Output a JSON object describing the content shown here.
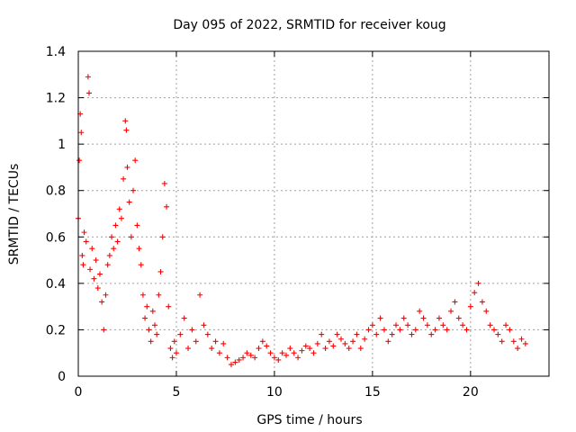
{
  "chart_data": {
    "type": "scatter",
    "title": "Day 095 of 2022, SRMTID for receiver koug",
    "xlabel": "GPS time / hours",
    "ylabel": "SRMTID / TECUs",
    "xlim": [
      0,
      24
    ],
    "ylim": [
      0,
      1.4
    ],
    "xticks": [
      0,
      5,
      10,
      15,
      20
    ],
    "xtick_labels": [
      "0",
      "5",
      "10",
      "15",
      "20"
    ],
    "yticks": [
      0,
      0.2,
      0.4,
      0.6,
      0.8,
      1.0,
      1.2,
      1.4
    ],
    "ytick_labels": [
      "0",
      "0.2",
      "0.4",
      "0.6",
      "0.8",
      "1",
      "1.2",
      "1.4"
    ],
    "grid": true,
    "marker": "+",
    "color": "#ff0000",
    "series": [
      {
        "name": "SRMTID",
        "x": [
          0.0,
          0.05,
          0.1,
          0.15,
          0.2,
          0.25,
          0.3,
          0.4,
          0.5,
          0.55,
          0.6,
          0.7,
          0.8,
          0.9,
          1.0,
          1.1,
          1.2,
          1.3,
          1.4,
          1.5,
          1.6,
          1.7,
          1.8,
          1.9,
          2.0,
          2.1,
          2.2,
          2.3,
          2.4,
          2.45,
          2.5,
          2.6,
          2.7,
          2.8,
          2.9,
          3.0,
          3.1,
          3.2,
          3.3,
          3.4,
          3.5,
          3.6,
          3.7,
          3.8,
          3.9,
          4.0,
          4.1,
          4.2,
          4.3,
          4.4,
          4.5,
          4.6,
          4.7,
          4.8,
          4.9,
          5.0,
          5.2,
          5.4,
          5.6,
          5.8,
          6.0,
          6.2,
          6.4,
          6.6,
          6.8,
          7.0,
          7.2,
          7.4,
          7.6,
          7.8,
          8.0,
          8.2,
          8.4,
          8.6,
          8.8,
          9.0,
          9.2,
          9.4,
          9.6,
          9.8,
          10.0,
          10.2,
          10.4,
          10.6,
          10.8,
          11.0,
          11.2,
          11.4,
          11.6,
          11.8,
          12.0,
          12.2,
          12.4,
          12.6,
          12.8,
          13.0,
          13.2,
          13.4,
          13.6,
          13.8,
          14.0,
          14.2,
          14.4,
          14.6,
          14.8,
          15.0,
          15.2,
          15.4,
          15.6,
          15.8,
          16.0,
          16.2,
          16.4,
          16.6,
          16.8,
          17.0,
          17.2,
          17.4,
          17.6,
          17.8,
          18.0,
          18.2,
          18.4,
          18.6,
          18.8,
          19.0,
          19.2,
          19.4,
          19.6,
          19.8,
          20.0,
          20.2,
          20.4,
          20.6,
          20.8,
          21.0,
          21.2,
          21.4,
          21.6,
          21.8,
          22.0,
          22.2,
          22.4,
          22.6,
          22.8
        ],
        "values": [
          0.68,
          0.93,
          1.13,
          1.05,
          0.52,
          0.48,
          0.62,
          0.58,
          1.29,
          1.22,
          0.46,
          0.55,
          0.42,
          0.5,
          0.38,
          0.44,
          0.32,
          0.2,
          0.35,
          0.48,
          0.52,
          0.6,
          0.55,
          0.65,
          0.58,
          0.72,
          0.68,
          0.85,
          1.1,
          1.06,
          0.9,
          0.75,
          0.6,
          0.8,
          0.93,
          0.65,
          0.55,
          0.48,
          0.35,
          0.25,
          0.3,
          0.2,
          0.15,
          0.28,
          0.22,
          0.18,
          0.35,
          0.45,
          0.6,
          0.83,
          0.73,
          0.3,
          0.12,
          0.08,
          0.15,
          0.1,
          0.18,
          0.25,
          0.12,
          0.2,
          0.15,
          0.35,
          0.22,
          0.18,
          0.12,
          0.15,
          0.1,
          0.14,
          0.08,
          0.05,
          0.06,
          0.07,
          0.08,
          0.1,
          0.09,
          0.08,
          0.12,
          0.15,
          0.13,
          0.1,
          0.08,
          0.07,
          0.1,
          0.09,
          0.12,
          0.1,
          0.08,
          0.11,
          0.13,
          0.12,
          0.1,
          0.14,
          0.18,
          0.12,
          0.15,
          0.13,
          0.18,
          0.16,
          0.14,
          0.12,
          0.15,
          0.18,
          0.12,
          0.16,
          0.2,
          0.22,
          0.18,
          0.25,
          0.2,
          0.15,
          0.18,
          0.22,
          0.2,
          0.25,
          0.22,
          0.18,
          0.2,
          0.28,
          0.25,
          0.22,
          0.18,
          0.2,
          0.25,
          0.22,
          0.2,
          0.28,
          0.32,
          0.25,
          0.22,
          0.2,
          0.3,
          0.36,
          0.4,
          0.32,
          0.28,
          0.22,
          0.2,
          0.18,
          0.15,
          0.22,
          0.2,
          0.15,
          0.12,
          0.16,
          0.14
        ]
      }
    ]
  }
}
